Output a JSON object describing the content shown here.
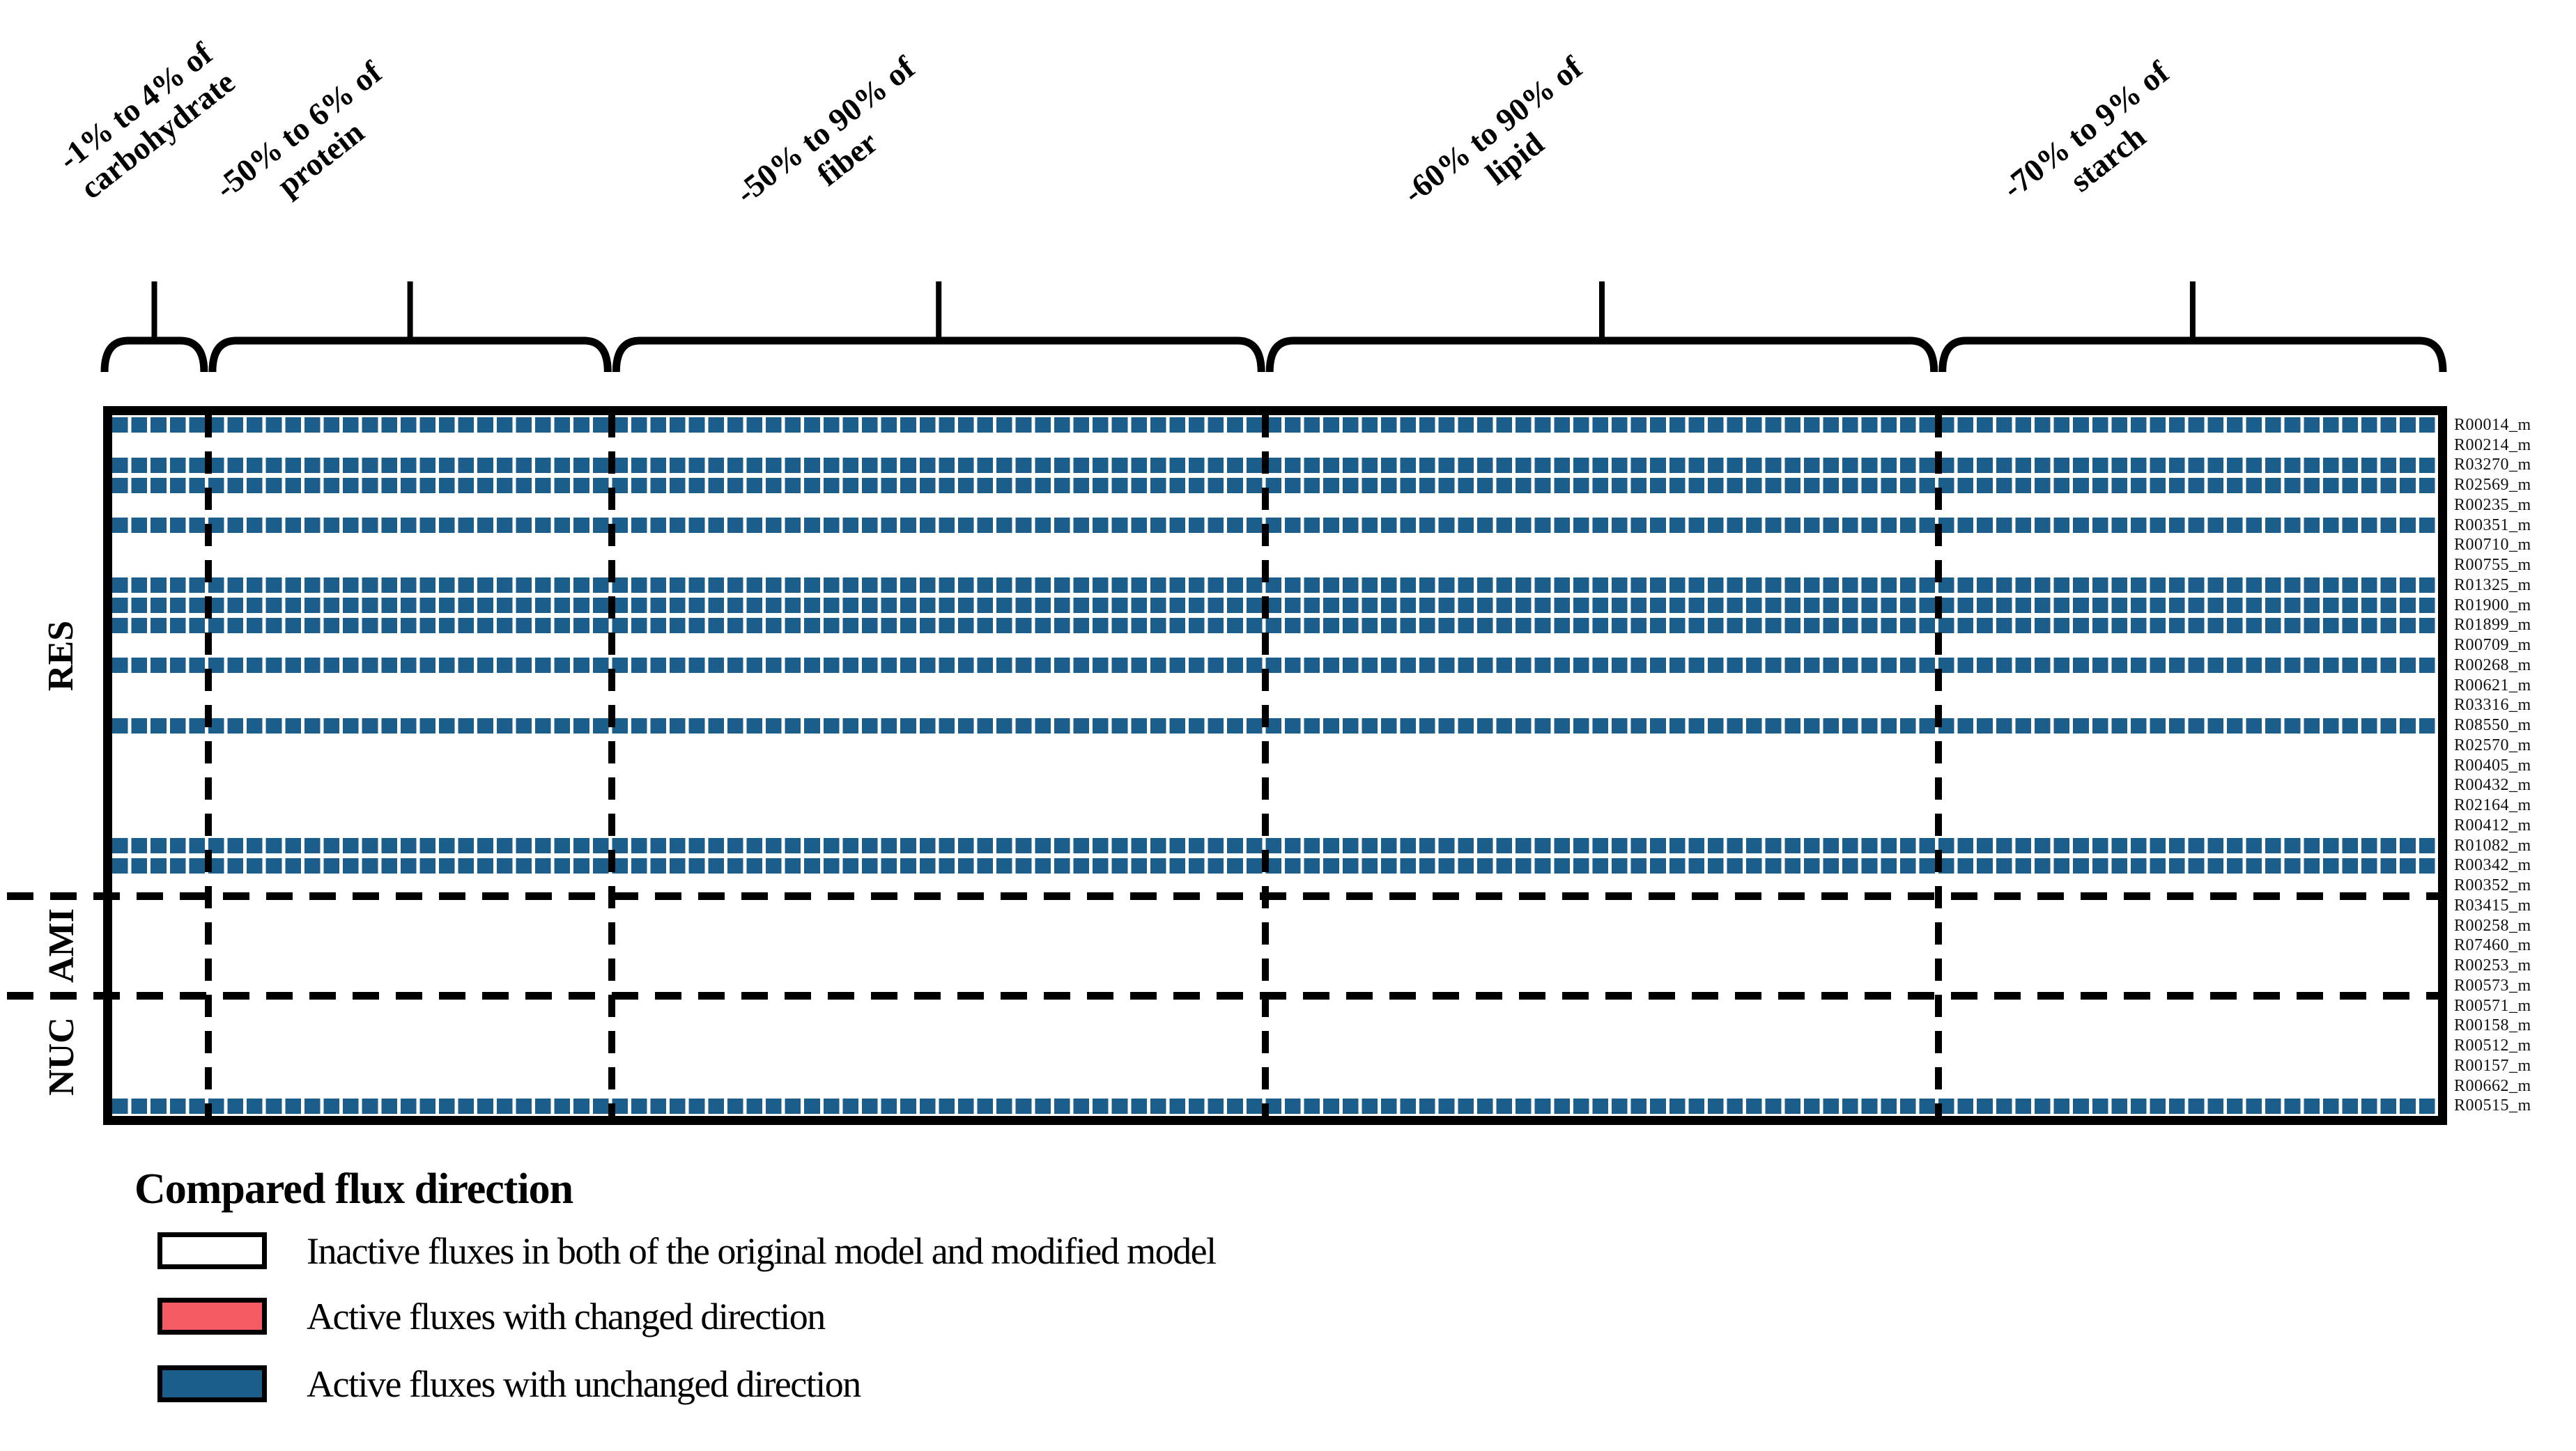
{
  "chart_data": {
    "type": "heatmap",
    "legend": {
      "title": "Compared flux direction",
      "entries": [
        {
          "key": "inactive",
          "color": "#FFFFFF",
          "label": "Inactive fluxes in both of the original model and modified model"
        },
        {
          "key": "active_changed",
          "color": "#F55B63",
          "label": "Active fluxes with changed direction"
        },
        {
          "key": "active_unchanged",
          "color": "#1B5D8B",
          "label": "Active fluxes with unchanged direction"
        }
      ]
    },
    "column_groups": [
      {
        "label_line1": "-1% to 4% of",
        "label_line2": "carbohydrate",
        "columns": 5
      },
      {
        "label_line1": "-50% to 6% of",
        "label_line2": "protein",
        "columns": 21
      },
      {
        "label_line1": "-50% to 90% of",
        "label_line2": "fiber",
        "columns": 34
      },
      {
        "label_line1": "-60% to 90% of",
        "label_line2": "lipid",
        "columns": 35
      },
      {
        "label_line1": "-70% to 9% of",
        "label_line2": "starch",
        "columns": 26
      }
    ],
    "values_uniform_across_columns": true,
    "row_sections": [
      {
        "label": "RES",
        "rows": [
          {
            "id": "R00014_m",
            "status": "active_unchanged"
          },
          {
            "id": "R00214_m",
            "status": "inactive"
          },
          {
            "id": "R03270_m",
            "status": "active_unchanged"
          },
          {
            "id": "R02569_m",
            "status": "active_unchanged"
          },
          {
            "id": "R00235_m",
            "status": "inactive"
          },
          {
            "id": "R00351_m",
            "status": "active_unchanged"
          },
          {
            "id": "R00710_m",
            "status": "inactive"
          },
          {
            "id": "R00755_m",
            "status": "inactive"
          },
          {
            "id": "R01325_m",
            "status": "active_unchanged"
          },
          {
            "id": "R01900_m",
            "status": "active_unchanged"
          },
          {
            "id": "R01899_m",
            "status": "active_unchanged"
          },
          {
            "id": "R00709_m",
            "status": "inactive"
          },
          {
            "id": "R00268_m",
            "status": "active_unchanged"
          },
          {
            "id": "R00621_m",
            "status": "inactive"
          },
          {
            "id": "R03316_m",
            "status": "inactive"
          },
          {
            "id": "R08550_m",
            "status": "active_unchanged"
          },
          {
            "id": "R02570_m",
            "status": "inactive"
          },
          {
            "id": "R00405_m",
            "status": "inactive"
          },
          {
            "id": "R00432_m",
            "status": "inactive"
          },
          {
            "id": "R02164_m",
            "status": "inactive"
          },
          {
            "id": "R00412_m",
            "status": "inactive"
          },
          {
            "id": "R01082_m",
            "status": "active_unchanged"
          },
          {
            "id": "R00342_m",
            "status": "active_unchanged"
          },
          {
            "id": "R00352_m",
            "status": "inactive"
          }
        ]
      },
      {
        "label": "AMI",
        "rows": [
          {
            "id": "R03415_m",
            "status": "inactive"
          },
          {
            "id": "R00258_m",
            "status": "inactive"
          },
          {
            "id": "R07460_m",
            "status": "inactive"
          },
          {
            "id": "R00253_m",
            "status": "inactive"
          },
          {
            "id": "R00573_m",
            "status": "inactive"
          }
        ]
      },
      {
        "label": "NUC",
        "rows": [
          {
            "id": "R00571_m",
            "status": "inactive"
          },
          {
            "id": "R00158_m",
            "status": "inactive"
          },
          {
            "id": "R00512_m",
            "status": "inactive"
          },
          {
            "id": "R00157_m",
            "status": "inactive"
          },
          {
            "id": "R00662_m",
            "status": "inactive"
          },
          {
            "id": "R00515_m",
            "status": "active_unchanged"
          }
        ]
      }
    ]
  }
}
